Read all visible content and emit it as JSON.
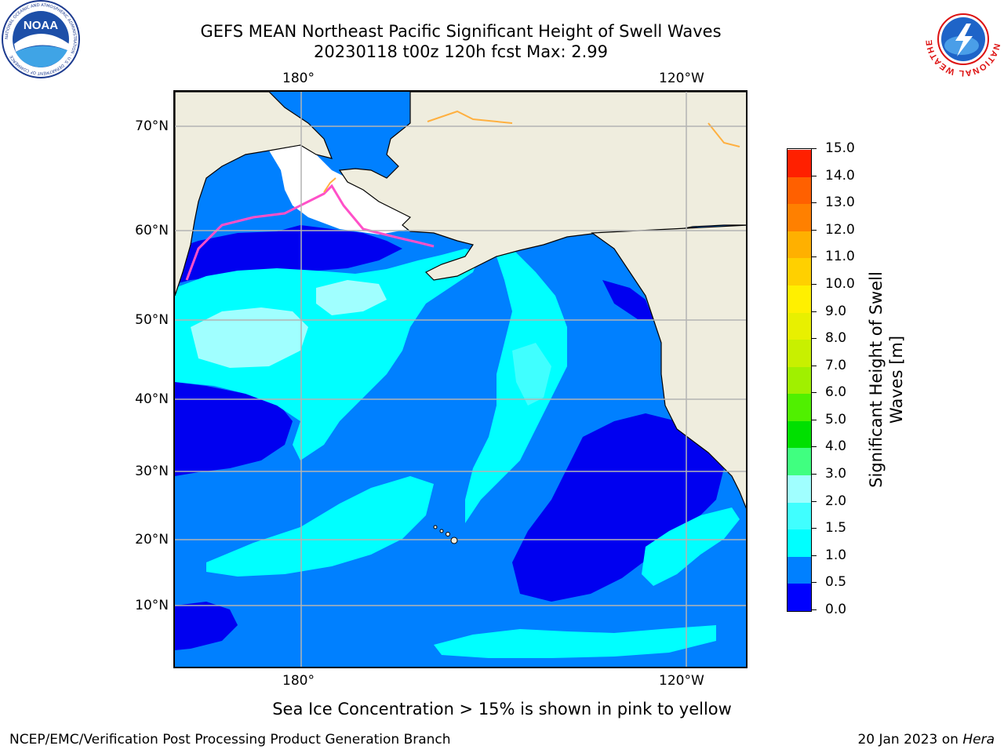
{
  "title": {
    "line1": "GEFS MEAN Northeast Pacific Significant Height of Swell Waves",
    "line2": "20230118 t00z 120h fcst   Max: 2.99"
  },
  "axes": {
    "lon_top": [
      "180°",
      "120°W"
    ],
    "lon_bottom": [
      "180°",
      "120°W"
    ],
    "lat": [
      "70°N",
      "60°N",
      "50°N",
      "40°N",
      "30°N",
      "20°N",
      "10°N"
    ]
  },
  "colorbar": {
    "label": "Significant Height of Swell Waves [m]",
    "ticks": [
      "0.0",
      "0.5",
      "1.0",
      "1.5",
      "2.0",
      "3.0",
      "4.0",
      "5.0",
      "6.0",
      "7.0",
      "8.0",
      "9.0",
      "10.0",
      "11.0",
      "12.0",
      "13.0",
      "14.0",
      "15.0"
    ],
    "colors": [
      "#0000fe",
      "#0080ff",
      "#00ffff",
      "#40ffff",
      "#a0ffff",
      "#40ff80",
      "#00e000",
      "#50f000",
      "#a0f000",
      "#c8f000",
      "#e8f000",
      "#fff000",
      "#ffd000",
      "#ffb000",
      "#ff8000",
      "#ff6000",
      "#ff2000"
    ]
  },
  "map_colors": {
    "land": "#efedde",
    "ice_free_white": "#ffffff",
    "deep": "#0000f0",
    "low": "#0080ff",
    "mid": "#00ffff",
    "mid2": "#40ffff",
    "high": "#a0ffff",
    "grid": "#b4b4b4",
    "ice_pink": "#ff50c8",
    "ice_orange": "#ffb040"
  },
  "logos": {
    "noaa_text": "NOAA",
    "noaa_ring": "NATIONAL OCEANIC AND ATMOSPHERIC ADMINISTRATION · U.S. DEPARTMENT OF COMMERCE",
    "nws_ring": "NATIONAL WEATHER SERVICE"
  },
  "notes": {
    "ice": "Sea Ice Concentration > 15% is shown in pink to yellow",
    "footer_left": "NCEP/EMC/Verification Post Processing Product Generation Branch",
    "footer_date": "20 Jan 2023 on ",
    "footer_machine": "Hera"
  }
}
